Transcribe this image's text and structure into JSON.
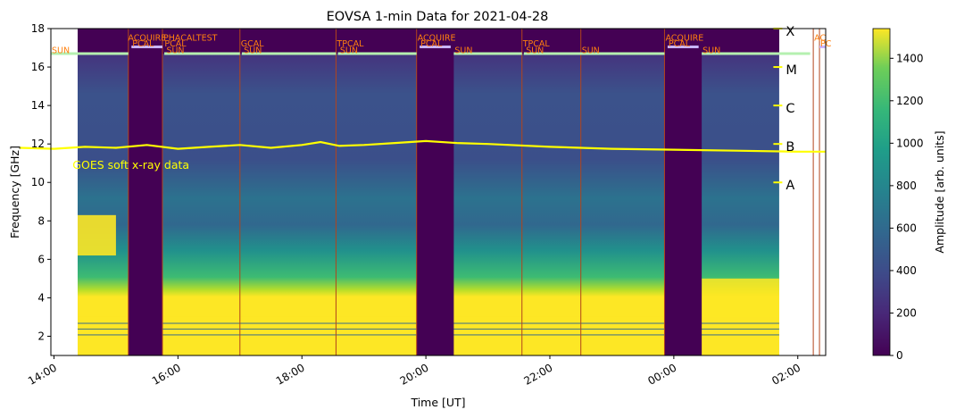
{
  "chart_data": {
    "type": "heatmap",
    "title": "EOVSA 1-min Data for 2021-04-28",
    "xlabel": "Time [UT]",
    "ylabel": "Frequency [GHz]",
    "colorbar_label": "Amplitude [arb. units]",
    "colormap": "viridis",
    "x_range_hours": [
      13.95,
      26.45
    ],
    "x_ticks": [
      {
        "label": "14:00",
        "hour": 14
      },
      {
        "label": "16:00",
        "hour": 16
      },
      {
        "label": "18:00",
        "hour": 18
      },
      {
        "label": "20:00",
        "hour": 20
      },
      {
        "label": "22:00",
        "hour": 22
      },
      {
        "label": "00:00",
        "hour": 24
      },
      {
        "label": "02:00",
        "hour": 26
      }
    ],
    "ylim": [
      1,
      18
    ],
    "y_ticks": [
      2,
      4,
      6,
      8,
      10,
      12,
      14,
      16,
      18
    ],
    "colorbar_range": [
      0,
      1540
    ],
    "colorbar_ticks": [
      0,
      200,
      400,
      600,
      800,
      1000,
      1200,
      1400
    ],
    "data_end_hour": 25.7,
    "gaps": [
      {
        "start": 15.2,
        "end": 15.75
      },
      {
        "start": 19.85,
        "end": 20.45
      },
      {
        "start": 23.85,
        "end": 24.45
      }
    ],
    "schedule_lines": [
      15.2,
      15.75,
      17.0,
      18.55,
      19.85,
      21.55,
      22.5,
      23.85,
      26.25,
      26.35
    ],
    "schedule_labels": [
      {
        "text": "SUN",
        "hour": 13.95,
        "freq": 16.9
      },
      {
        "text": "ACQUIRE",
        "hour": 15.18,
        "freq": 17.55
      },
      {
        "text": "PCAL",
        "hour": 15.25,
        "freq": 17.25
      },
      {
        "text": "PHACAL",
        "hour": 15.75,
        "freq": 17.55
      },
      {
        "text": "TEST",
        "hour": 16.28,
        "freq": 17.55
      },
      {
        "text": "PCAL",
        "hour": 15.77,
        "freq": 17.25
      },
      {
        "text": "SUN",
        "hour": 15.8,
        "freq": 16.9
      },
      {
        "text": "GCAL",
        "hour": 17.0,
        "freq": 17.25
      },
      {
        "text": "SUN",
        "hour": 17.05,
        "freq": 16.9
      },
      {
        "text": "TPCAL",
        "hour": 18.55,
        "freq": 17.25
      },
      {
        "text": "SUN",
        "hour": 18.6,
        "freq": 16.9
      },
      {
        "text": "ACQUIRE",
        "hour": 19.85,
        "freq": 17.55
      },
      {
        "text": "PCAL",
        "hour": 19.9,
        "freq": 17.25
      },
      {
        "text": "SUN",
        "hour": 20.45,
        "freq": 16.9
      },
      {
        "text": "TPCAL",
        "hour": 21.55,
        "freq": 17.25
      },
      {
        "text": "SUN",
        "hour": 21.6,
        "freq": 16.9
      },
      {
        "text": "SUN",
        "hour": 22.5,
        "freq": 16.9
      },
      {
        "text": "ACQUIRE",
        "hour": 23.85,
        "freq": 17.55
      },
      {
        "text": "PCAL",
        "hour": 23.9,
        "freq": 17.25
      },
      {
        "text": "SUN",
        "hour": 24.45,
        "freq": 16.9
      },
      {
        "text": "AC",
        "hour": 26.25,
        "freq": 17.55
      },
      {
        "text": "PC",
        "hour": 26.35,
        "freq": 17.25
      }
    ],
    "sun_bar_freq": 16.7,
    "goes_label": "GOES soft x-ray data",
    "goes_color": "#ffff00",
    "goes_curve": [
      {
        "hour": 13.45,
        "freq": 11.8
      },
      {
        "hour": 14.0,
        "freq": 11.75
      },
      {
        "hour": 14.5,
        "freq": 11.85
      },
      {
        "hour": 15.0,
        "freq": 11.8
      },
      {
        "hour": 15.5,
        "freq": 11.95
      },
      {
        "hour": 16.0,
        "freq": 11.75
      },
      {
        "hour": 16.5,
        "freq": 11.85
      },
      {
        "hour": 17.0,
        "freq": 11.95
      },
      {
        "hour": 17.5,
        "freq": 11.8
      },
      {
        "hour": 18.0,
        "freq": 11.95
      },
      {
        "hour": 18.3,
        "freq": 12.1
      },
      {
        "hour": 18.6,
        "freq": 11.9
      },
      {
        "hour": 19.0,
        "freq": 11.95
      },
      {
        "hour": 19.5,
        "freq": 12.05
      },
      {
        "hour": 20.0,
        "freq": 12.15
      },
      {
        "hour": 20.5,
        "freq": 12.05
      },
      {
        "hour": 21.0,
        "freq": 12.0
      },
      {
        "hour": 22.0,
        "freq": 11.85
      },
      {
        "hour": 23.0,
        "freq": 11.75
      },
      {
        "hour": 24.0,
        "freq": 11.7
      },
      {
        "hour": 25.0,
        "freq": 11.65
      },
      {
        "hour": 26.0,
        "freq": 11.6
      },
      {
        "hour": 26.45,
        "freq": 11.6
      }
    ],
    "goes_classes": [
      {
        "label": "A",
        "freq": 10.0
      },
      {
        "label": "B",
        "freq": 12.0
      },
      {
        "label": "C",
        "freq": 14.0
      },
      {
        "label": "M",
        "freq": 16.0
      },
      {
        "label": "X",
        "freq": 18.0
      }
    ]
  }
}
